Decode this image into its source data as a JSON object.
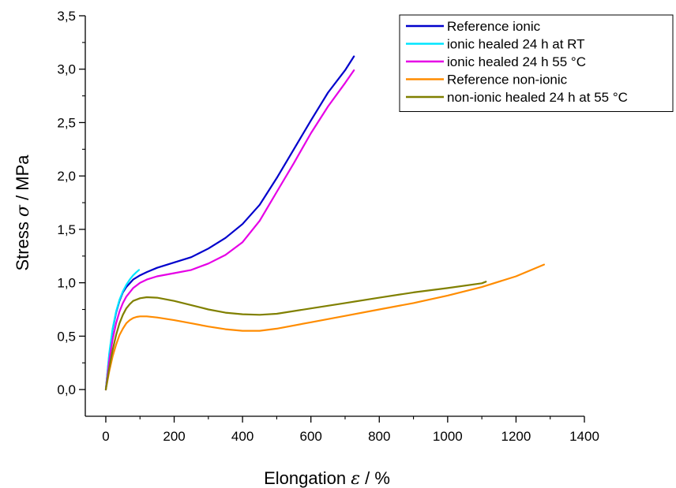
{
  "chart_data": {
    "type": "line",
    "title": "",
    "xlabel": {
      "prefix": "Elongation ",
      "symbol": "ε",
      "suffix": " / %"
    },
    "ylabel": {
      "prefix": "Stress ",
      "symbol": "σ",
      "suffix": " / MPa"
    },
    "xlim": [
      -60,
      1400
    ],
    "ylim": [
      -0.25,
      3.5
    ],
    "xticks": [
      0,
      200,
      400,
      600,
      800,
      1000,
      1200,
      1400
    ],
    "xtick_labels": [
      "0",
      "200",
      "400",
      "600",
      "800",
      "1000",
      "1200",
      "1400"
    ],
    "yticks": [
      0,
      0.5,
      1,
      1.5,
      2,
      2.5,
      3,
      3.5
    ],
    "ytick_labels": [
      "0,0",
      "0,5",
      "1,0",
      "1,5",
      "2,0",
      "2,5",
      "3,0",
      "3,5"
    ],
    "grid": false,
    "legend_position": "top-right",
    "series": [
      {
        "name": "Reference ionic",
        "color": "#0000cc",
        "x": [
          0,
          10,
          20,
          30,
          40,
          50,
          60,
          80,
          100,
          120,
          150,
          200,
          250,
          300,
          350,
          400,
          450,
          500,
          550,
          600,
          650,
          700,
          726
        ],
        "y": [
          0,
          0.32,
          0.56,
          0.72,
          0.83,
          0.91,
          0.96,
          1.03,
          1.07,
          1.1,
          1.14,
          1.19,
          1.24,
          1.32,
          1.42,
          1.55,
          1.73,
          1.98,
          2.25,
          2.52,
          2.78,
          2.99,
          3.12
        ]
      },
      {
        "name": "ionic healed 24 h at RT",
        "color": "#00e5ff",
        "x": [
          0,
          10,
          20,
          30,
          40,
          50,
          60,
          70,
          80,
          90,
          97
        ],
        "y": [
          0,
          0.34,
          0.57,
          0.73,
          0.84,
          0.92,
          0.98,
          1.03,
          1.07,
          1.1,
          1.12
        ]
      },
      {
        "name": "ionic healed 24 h 55 °C",
        "color": "#e600e6",
        "x": [
          0,
          10,
          20,
          30,
          40,
          50,
          60,
          80,
          100,
          120,
          150,
          200,
          250,
          300,
          350,
          400,
          450,
          500,
          550,
          600,
          650,
          700,
          726
        ],
        "y": [
          0,
          0.27,
          0.47,
          0.62,
          0.73,
          0.81,
          0.87,
          0.95,
          1.0,
          1.03,
          1.06,
          1.09,
          1.12,
          1.18,
          1.26,
          1.38,
          1.58,
          1.85,
          2.12,
          2.4,
          2.65,
          2.87,
          2.99
        ]
      },
      {
        "name": "Reference non-ionic",
        "color": "#ff8c00",
        "x": [
          0,
          10,
          20,
          30,
          40,
          50,
          60,
          70,
          80,
          90,
          100,
          120,
          150,
          200,
          250,
          300,
          350,
          400,
          450,
          500,
          600,
          700,
          800,
          900,
          1000,
          1100,
          1200,
          1282
        ],
        "y": [
          0,
          0.17,
          0.31,
          0.42,
          0.51,
          0.57,
          0.62,
          0.65,
          0.67,
          0.68,
          0.685,
          0.685,
          0.675,
          0.65,
          0.62,
          0.59,
          0.565,
          0.55,
          0.55,
          0.57,
          0.63,
          0.69,
          0.75,
          0.81,
          0.88,
          0.96,
          1.06,
          1.17
        ]
      },
      {
        "name": "non-ionic healed 24 h at 55 °C",
        "color": "#808000",
        "x": [
          0,
          10,
          20,
          30,
          40,
          50,
          60,
          70,
          80,
          100,
          120,
          150,
          200,
          250,
          300,
          350,
          400,
          450,
          500,
          600,
          700,
          800,
          900,
          1000,
          1100,
          1112
        ],
        "y": [
          0,
          0.2,
          0.37,
          0.51,
          0.62,
          0.7,
          0.76,
          0.8,
          0.83,
          0.855,
          0.865,
          0.86,
          0.83,
          0.79,
          0.75,
          0.72,
          0.705,
          0.7,
          0.71,
          0.76,
          0.81,
          0.86,
          0.91,
          0.95,
          0.995,
          1.01
        ]
      }
    ]
  }
}
